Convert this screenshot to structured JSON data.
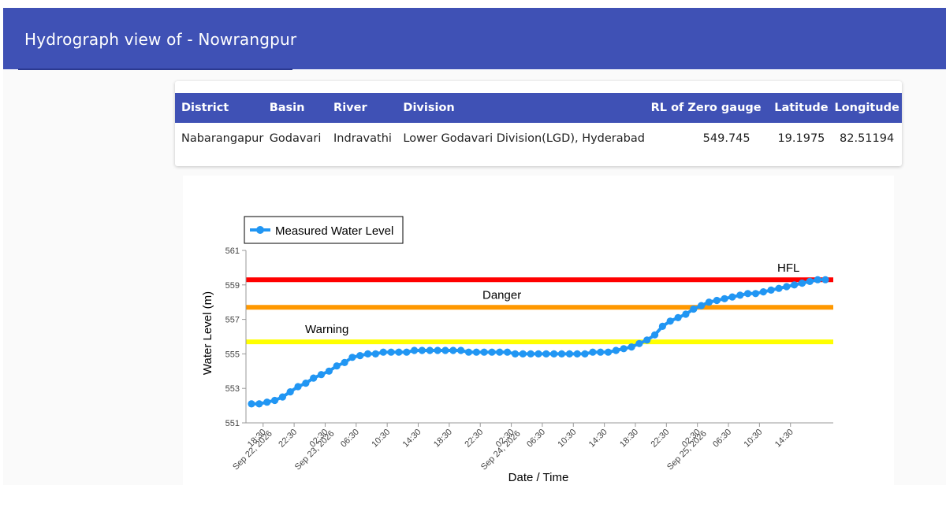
{
  "header": {
    "title": "Hydrograph view of - Nowrangpur"
  },
  "station_table": {
    "columns": [
      "District",
      "Basin",
      "River",
      "Division",
      "RL of Zero gauge",
      "Latitude",
      "Longitude"
    ],
    "row": [
      "Nabarangapur",
      "Godavari",
      "Indravathi",
      "Lower Godavari Division(LGD), Hyderabad",
      "549.745",
      "19.1975",
      "82.51194"
    ]
  },
  "colors": {
    "header": "#3f51b5",
    "series": "#2196f3",
    "hfl": "#ff0000",
    "danger": "#ff9800",
    "warning": "#ffff00"
  },
  "chart_data": {
    "type": "line",
    "xlabel": "Date / Time",
    "ylabel": "Water Level (m)",
    "ylim": [
      551,
      561
    ],
    "yticks": [
      "551",
      "553",
      "555",
      "557",
      "559",
      "561"
    ],
    "legend": {
      "position": "top-left",
      "entries": [
        "Measured Water Level"
      ]
    },
    "grid": false,
    "x_start": "Sep 22, 2026 17:00",
    "x_end": "Sep 25, 2026 15:30",
    "x_step_minutes": 60,
    "x_ticks": [
      {
        "time": "2026-09-22 18:30",
        "label": "18:30",
        "date_label": "Sep 22, 2026"
      },
      {
        "time": "2026-09-22 22:30",
        "label": "22:30"
      },
      {
        "time": "2026-09-23 02:30",
        "label": "02:30",
        "date_label": "Sep 23, 2026"
      },
      {
        "time": "2026-09-23 06:30",
        "label": "06:30"
      },
      {
        "time": "2026-09-23 10:30",
        "label": "10:30"
      },
      {
        "time": "2026-09-23 14:30",
        "label": "14:30"
      },
      {
        "time": "2026-09-23 18:30",
        "label": "18:30"
      },
      {
        "time": "2026-09-23 22:30",
        "label": "22:30"
      },
      {
        "time": "2026-09-24 02:30",
        "label": "02:30",
        "date_label": "Sep 24, 2026"
      },
      {
        "time": "2026-09-24 06:30",
        "label": "06:30"
      },
      {
        "time": "2026-09-24 10:30",
        "label": "10:30"
      },
      {
        "time": "2026-09-24 14:30",
        "label": "14:30"
      },
      {
        "time": "2026-09-24 18:30",
        "label": "18:30"
      },
      {
        "time": "2026-09-24 22:30",
        "label": "22:30"
      },
      {
        "time": "2026-09-25 02:30",
        "label": "02:30",
        "date_label": "Sep 25, 2026"
      },
      {
        "time": "2026-09-25 06:30",
        "label": "06:30"
      },
      {
        "time": "2026-09-25 10:30",
        "label": "10:30"
      },
      {
        "time": "2026-09-25 14:30",
        "label": "14:30"
      }
    ],
    "thresholds": [
      {
        "name": "HFL",
        "value": 559.3,
        "color": "#ff0000"
      },
      {
        "name": "Danger",
        "value": 557.7,
        "color": "#ff9800"
      },
      {
        "name": "Warning",
        "value": 555.7,
        "color": "#ffff00"
      }
    ],
    "series": [
      {
        "name": "Measured Water Level",
        "values": [
          552.1,
          552.1,
          552.2,
          552.3,
          552.5,
          552.8,
          553.1,
          553.3,
          553.6,
          553.8,
          554.0,
          554.3,
          554.5,
          554.8,
          554.9,
          555.0,
          555.0,
          555.1,
          555.1,
          555.1,
          555.1,
          555.2,
          555.2,
          555.2,
          555.2,
          555.2,
          555.2,
          555.2,
          555.1,
          555.1,
          555.1,
          555.1,
          555.1,
          555.1,
          555.0,
          555.0,
          555.0,
          555.0,
          555.0,
          555.0,
          555.0,
          555.0,
          555.0,
          555.0,
          555.1,
          555.1,
          555.1,
          555.2,
          555.3,
          555.4,
          555.6,
          555.8,
          556.1,
          556.6,
          556.9,
          557.1,
          557.3,
          557.6,
          557.8,
          558.0,
          558.1,
          558.2,
          558.3,
          558.4,
          558.5,
          558.5,
          558.6,
          558.7,
          558.8,
          558.9,
          559.0,
          559.1,
          559.2,
          559.3,
          559.3
        ]
      }
    ]
  }
}
